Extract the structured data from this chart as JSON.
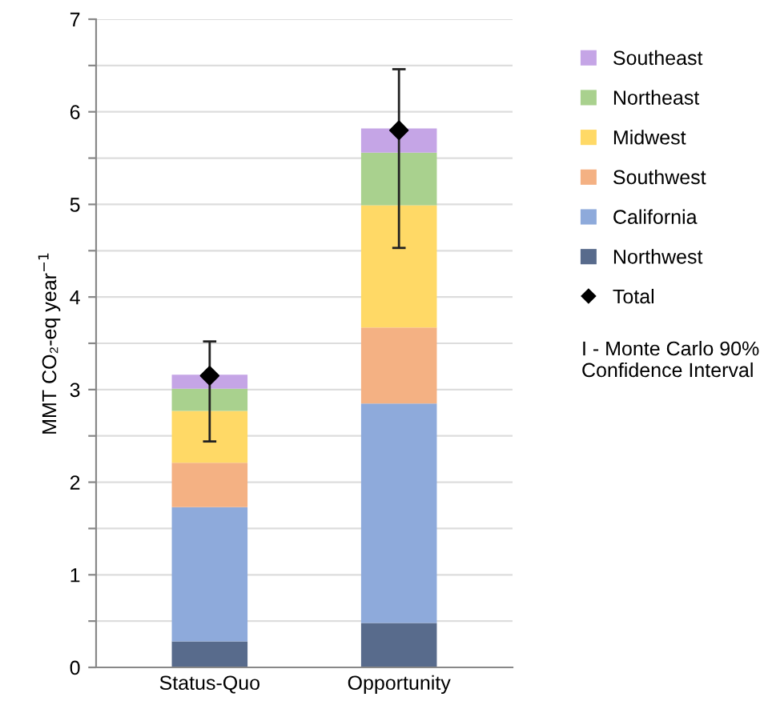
{
  "chart_data": {
    "type": "bar",
    "stacked": true,
    "ylabel": "MMT CO₂-eq year$^{−1}$",
    "categories": [
      "Status-Quo",
      "Opportunity"
    ],
    "series": [
      {
        "name": "Northwest",
        "color": "#586b8c",
        "values": [
          0.28,
          0.48
        ]
      },
      {
        "name": "California",
        "color": "#8eaadb",
        "values": [
          1.45,
          2.37
        ]
      },
      {
        "name": "Southwest",
        "color": "#f4b183",
        "values": [
          0.48,
          0.82
        ]
      },
      {
        "name": "Midwest",
        "color": "#ffd966",
        "values": [
          0.56,
          1.32
        ]
      },
      {
        "name": "Northeast",
        "color": "#a9d18e",
        "values": [
          0.24,
          0.57
        ]
      },
      {
        "name": "Southeast",
        "color": "#c5a5e6",
        "values": [
          0.15,
          0.26
        ]
      },
      {
        "name": "Total",
        "type": "scatter",
        "color": "#000000",
        "marker": "diamond",
        "x": [
          "Status-Quo",
          "Opportunity"
        ],
        "values": [
          3.15,
          5.8
        ],
        "errors": [
          [
            2.44,
            3.52
          ],
          [
            4.53,
            6.46
          ]
        ]
      }
    ],
    "ylim": [
      0,
      7
    ],
    "yticks": [
      0,
      {
        "value": 0.5,
        "label": null
      },
      1,
      {
        "value": 1.5,
        "label": null
      },
      2,
      {
        "value": 2.5,
        "label": null
      },
      3,
      {
        "value": 3.5,
        "label": null
      },
      4,
      {
        "value": 4.5,
        "label": null
      },
      5,
      {
        "value": 5.5,
        "label": null
      },
      6,
      {
        "value": 6.5,
        "label": null
      },
      7
    ],
    "grid": "y",
    "legend": "right",
    "annotations": [
      "I - Monte Carlo 90% Confidence Interval"
    ]
  }
}
